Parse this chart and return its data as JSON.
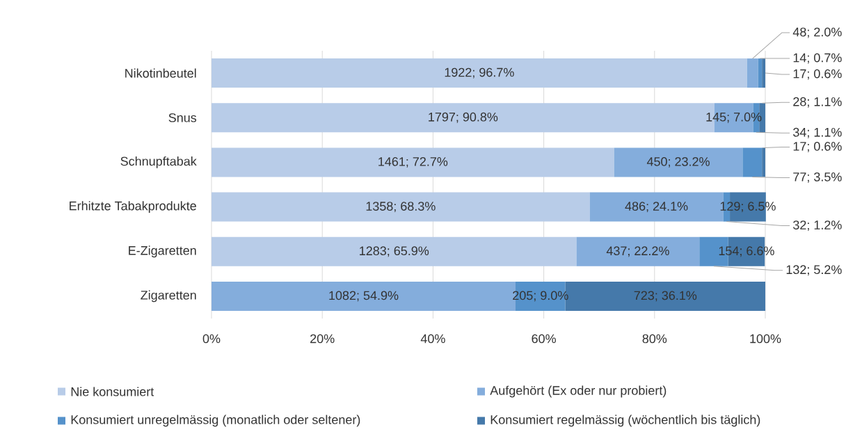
{
  "chart_data": {
    "type": "bar",
    "orientation": "horizontal",
    "stacked": true,
    "categories": [
      "Nikotinbeutel",
      "Snus",
      "Schnupftabak",
      "Erhitzte Tabakprodukte",
      "E-Zigaretten",
      "Zigaretten"
    ],
    "series": [
      {
        "name": "Nie konsumiert",
        "color": "#b8cce8",
        "values": [
          96.7,
          90.8,
          72.7,
          68.3,
          65.9,
          null
        ],
        "value_labels": [
          "1922; 96.7%",
          "1797; 90.8%",
          "1461; 72.7%",
          "1358; 68.3%",
          "1283; 65.9%",
          null
        ]
      },
      {
        "name": "Aufgehört (Ex oder nur probiert)",
        "color": "#84addc",
        "values": [
          2.0,
          7.0,
          23.2,
          24.1,
          22.2,
          54.9
        ],
        "value_labels": [
          "48; 2.0%",
          "145; 7.0%",
          "450; 23.2%",
          "486; 24.1%",
          "437; 22.2%",
          "1082; 54.9%"
        ]
      },
      {
        "name": "Konsumiert unregelmässig (monatlich oder seltener)",
        "color": "#5592cb",
        "values": [
          0.7,
          1.1,
          3.5,
          1.2,
          5.2,
          9.0
        ],
        "value_labels": [
          "14; 0.7%",
          "34; 1.1%",
          "77; 3.5%",
          "32; 1.2%",
          "132; 5.2%",
          "205; 9.0%"
        ]
      },
      {
        "name": "Konsumiert regelmässig (wöchentlich bis täglich)",
        "color": "#4579aa",
        "values": [
          0.6,
          1.1,
          0.6,
          6.5,
          6.6,
          36.1
        ],
        "value_labels": [
          "17; 0.6%",
          "28; 1.1%",
          "17; 0.6%",
          "129; 6.5%",
          "154; 6.6%",
          "723; 36.1%"
        ]
      }
    ],
    "xlim": [
      0,
      100
    ],
    "xticks": [
      {
        "value": 0,
        "label": "0%"
      },
      {
        "value": 20,
        "label": "20%"
      },
      {
        "value": 40,
        "label": "40%"
      },
      {
        "value": 60,
        "label": "60%"
      },
      {
        "value": 80,
        "label": "80%"
      },
      {
        "value": 100,
        "label": "100%"
      }
    ],
    "grid": "x",
    "legend": "bottom"
  }
}
